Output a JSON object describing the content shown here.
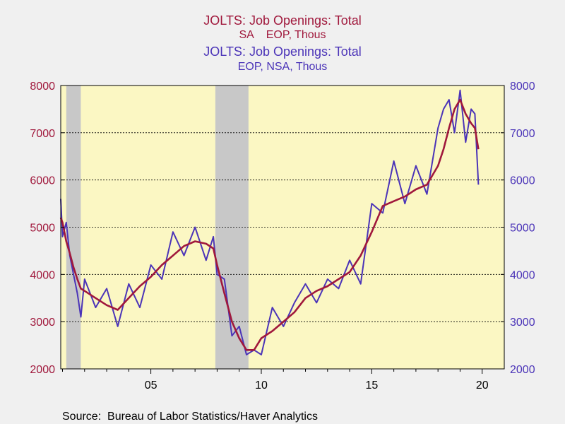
{
  "chart_data": {
    "type": "line",
    "title_lines": [
      {
        "text": "JOLTS: Job Openings: Total",
        "series": "sa"
      },
      {
        "text": "SA    EOP, Thous",
        "series": "sa"
      },
      {
        "text": "JOLTS: Job Openings: Total",
        "series": "nsa"
      },
      {
        "text": "EOP, NSA, Thous",
        "series": "nsa"
      }
    ],
    "source": "Source:  Bureau of Labor Statistics/Haver Analytics",
    "x_range": [
      2000.92,
      2021.0
    ],
    "x_ticks": [
      {
        "value": 2005,
        "label": "05"
      },
      {
        "value": 2010,
        "label": "10"
      },
      {
        "value": 2015,
        "label": "15"
      },
      {
        "value": 2020,
        "label": "20"
      }
    ],
    "y_left": {
      "min": 2000,
      "max": 8000,
      "ticks": [
        "2000",
        "3000",
        "4000",
        "5000",
        "6000",
        "7000",
        "8000"
      ]
    },
    "y_right": {
      "min": 2000,
      "max": 8000,
      "ticks": [
        "2000",
        "3000",
        "4000",
        "5000",
        "6000",
        "7000",
        "8000"
      ]
    },
    "grid": "horizontal dashed",
    "recessions": [
      {
        "start": 2001.17,
        "end": 2001.83
      },
      {
        "start": 2007.92,
        "end": 2009.42
      }
    ],
    "colors": {
      "plot_bg": "#fbf7c3",
      "recession": "#c8c8c8",
      "sa": "#a0183c",
      "nsa": "#4b34b8",
      "background": "#f0f0f0"
    },
    "series": [
      {
        "key": "sa",
        "color": "#a0183c",
        "x": [
          2000.92,
          2001.0,
          2001.17,
          2001.33,
          2001.5,
          2001.67,
          2001.83,
          2002.0,
          2002.5,
          2003.0,
          2003.5,
          2004.0,
          2004.5,
          2005.0,
          2005.5,
          2006.0,
          2006.5,
          2007.0,
          2007.5,
          2007.83,
          2008.0,
          2008.33,
          2008.67,
          2009.0,
          2009.33,
          2009.67,
          2010.0,
          2010.5,
          2011.0,
          2011.5,
          2012.0,
          2012.5,
          2013.0,
          2013.5,
          2014.0,
          2014.5,
          2015.0,
          2015.5,
          2016.0,
          2016.5,
          2017.0,
          2017.5,
          2018.0,
          2018.25,
          2018.5,
          2018.75,
          2019.0,
          2019.25,
          2019.5,
          2019.67,
          2019.83
        ],
        "y": [
          5200,
          5100,
          4700,
          4450,
          4150,
          3900,
          3700,
          3650,
          3500,
          3350,
          3250,
          3500,
          3750,
          3950,
          4200,
          4400,
          4600,
          4700,
          4650,
          4550,
          4200,
          3600,
          3000,
          2650,
          2400,
          2400,
          2650,
          2800,
          3000,
          3200,
          3500,
          3650,
          3750,
          3900,
          4050,
          4400,
          4900,
          5450,
          5550,
          5650,
          5800,
          5900,
          6300,
          6650,
          7100,
          7500,
          7700,
          7400,
          7200,
          7100,
          6650
        ]
      },
      {
        "key": "nsa",
        "color": "#4b34b8",
        "x": [
          2000.92,
          2001.0,
          2001.17,
          2001.33,
          2001.5,
          2001.67,
          2001.83,
          2002.0,
          2002.5,
          2003.0,
          2003.5,
          2004.0,
          2004.5,
          2005.0,
          2005.5,
          2006.0,
          2006.5,
          2007.0,
          2007.5,
          2007.83,
          2008.0,
          2008.33,
          2008.67,
          2009.0,
          2009.33,
          2009.67,
          2010.0,
          2010.5,
          2011.0,
          2011.5,
          2012.0,
          2012.5,
          2013.0,
          2013.5,
          2014.0,
          2014.5,
          2015.0,
          2015.5,
          2016.0,
          2016.5,
          2017.0,
          2017.5,
          2018.0,
          2018.25,
          2018.5,
          2018.75,
          2019.0,
          2019.25,
          2019.5,
          2019.67,
          2019.83
        ],
        "y": [
          5600,
          4800,
          5100,
          4400,
          4000,
          3600,
          3100,
          3900,
          3300,
          3700,
          2900,
          3800,
          3300,
          4200,
          3900,
          4900,
          4400,
          5000,
          4300,
          4800,
          4000,
          3900,
          2700,
          2900,
          2300,
          2400,
          2300,
          3300,
          2900,
          3400,
          3800,
          3400,
          3900,
          3700,
          4300,
          3800,
          5500,
          5300,
          6400,
          5500,
          6300,
          5700,
          7100,
          7500,
          7700,
          7000,
          7900,
          6800,
          7500,
          7400,
          5900
        ]
      }
    ]
  }
}
